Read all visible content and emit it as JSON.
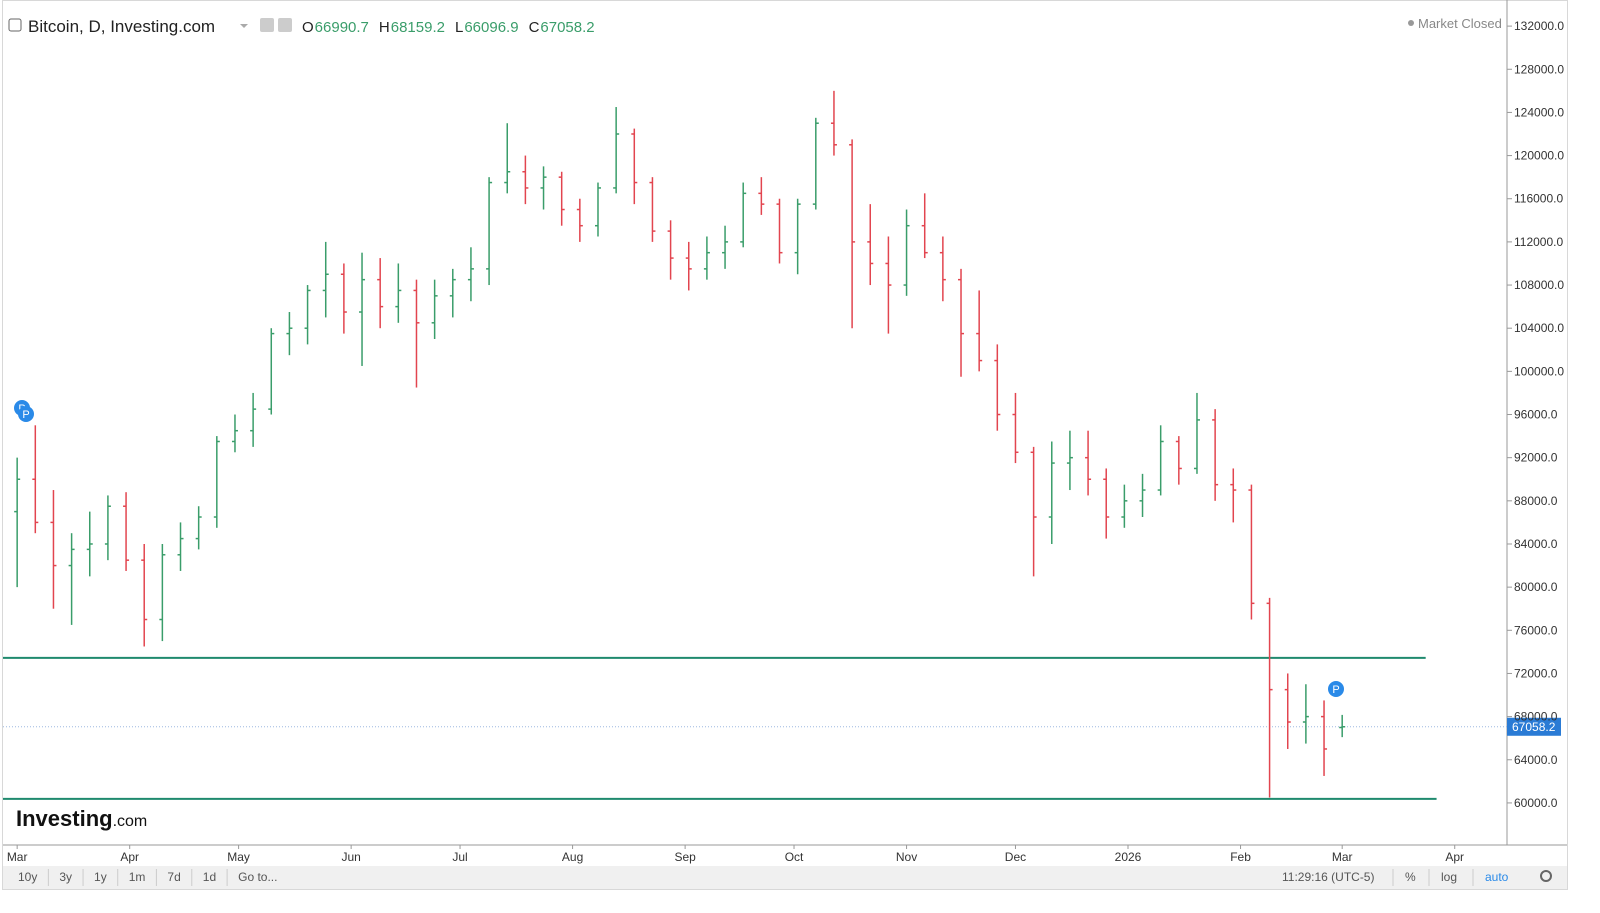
{
  "header": {
    "title": "Bitcoin, D, Investing.com",
    "ohlc_labels": [
      "O",
      "H",
      "L",
      "C"
    ],
    "status": "Market Closed"
  },
  "logo": {
    "brand": "Investing",
    "suffix": ".com"
  },
  "markers": [
    "P",
    "P",
    "P"
  ],
  "chart_data": {
    "type": "ohlc",
    "x": [
      0,
      5,
      10,
      15,
      20,
      25,
      30,
      35,
      40,
      45,
      50,
      55,
      60,
      65,
      70,
      75,
      80,
      85,
      90,
      95,
      100,
      105,
      110,
      115,
      120,
      125,
      130,
      135,
      140,
      145,
      150,
      155,
      160,
      165,
      170,
      175,
      180,
      185,
      190,
      195,
      200,
      205,
      210,
      215,
      220,
      225,
      230,
      235,
      240,
      245,
      250,
      255,
      260,
      265,
      270,
      275,
      280,
      285,
      290,
      295,
      300,
      305,
      310,
      315,
      320,
      325,
      330,
      335,
      340,
      345,
      350,
      355,
      360,
      365
    ],
    "open": [
      87000,
      90000,
      86000,
      82000,
      83500,
      84000,
      87500,
      82500,
      77000,
      83000,
      84500,
      86500,
      93500,
      94500,
      96500,
      103500,
      104000,
      107500,
      109000,
      105500,
      108500,
      106000,
      107500,
      104500,
      107000,
      108500,
      109500,
      117500,
      118500,
      117000,
      118000,
      115000,
      113500,
      117000,
      122000,
      117500,
      113000,
      110500,
      109500,
      111000,
      112000,
      116500,
      115500,
      111000,
      115500,
      123000,
      121000,
      112000,
      110000,
      108000,
      113500,
      111000,
      108500,
      103500,
      101000,
      96000,
      92500,
      86500,
      91500,
      92000,
      90000,
      86500,
      88000,
      89000,
      93500,
      91000,
      95500,
      89500,
      89000,
      78500,
      70500,
      67500,
      68000,
      66990.7
    ],
    "high": [
      92000,
      95000,
      89000,
      85000,
      87000,
      88500,
      88800,
      84000,
      84000,
      86000,
      87500,
      94000,
      96000,
      98000,
      104000,
      105500,
      108000,
      112000,
      110000,
      111000,
      110500,
      110000,
      108500,
      108500,
      109500,
      111500,
      118000,
      123000,
      120000,
      119000,
      118500,
      116000,
      117500,
      124500,
      122500,
      118000,
      114000,
      112000,
      112500,
      113500,
      117500,
      118000,
      116000,
      116000,
      123500,
      126000,
      121500,
      115500,
      112500,
      115000,
      116500,
      112500,
      109500,
      107500,
      102500,
      98000,
      93000,
      93500,
      94500,
      94500,
      91000,
      89500,
      90500,
      95000,
      94000,
      98000,
      96500,
      91000,
      89500,
      79000,
      72000,
      71000,
      69500,
      68159.2
    ],
    "low": [
      80000,
      85000,
      78000,
      76500,
      81000,
      82500,
      81500,
      74500,
      75000,
      81500,
      83500,
      85500,
      92500,
      93000,
      96000,
      101500,
      102500,
      105000,
      103500,
      100500,
      104000,
      104500,
      98500,
      103000,
      105000,
      106500,
      108000,
      116500,
      115500,
      115000,
      113500,
      112000,
      112500,
      116500,
      115500,
      112000,
      108500,
      107500,
      108500,
      109500,
      111500,
      114500,
      110000,
      109000,
      115000,
      120000,
      104000,
      108000,
      103500,
      107000,
      110500,
      106500,
      99500,
      100000,
      94500,
      91500,
      81000,
      84000,
      89000,
      88500,
      84500,
      85500,
      86500,
      88500,
      89500,
      90500,
      88000,
      86000,
      77000,
      60500,
      65000,
      65500,
      62500,
      66096.9
    ],
    "close": [
      90000,
      86000,
      82000,
      83500,
      84000,
      87500,
      82500,
      77000,
      83000,
      84500,
      86500,
      93500,
      94500,
      96500,
      103500,
      104000,
      107500,
      109000,
      105500,
      108500,
      106000,
      107500,
      104500,
      107000,
      108500,
      109500,
      117500,
      118500,
      117000,
      118000,
      115000,
      113500,
      117000,
      122000,
      117500,
      113000,
      110500,
      109500,
      111000,
      112000,
      116500,
      115500,
      111000,
      115500,
      123000,
      121000,
      112000,
      110000,
      108000,
      113500,
      111000,
      108500,
      103500,
      101000,
      96000,
      92500,
      86500,
      91500,
      92000,
      90000,
      86500,
      88000,
      89000,
      93500,
      91000,
      95500,
      89500,
      89000,
      78500,
      70500,
      67500,
      68000,
      65000,
      67058.2
    ],
    "up_color": "#3a9d6a",
    "down_color": "#e2454f",
    "xlim": [
      -3.9,
      410.4
    ],
    "xticks": [
      {
        "value": 0,
        "label": "Mar"
      },
      {
        "value": 31,
        "label": "Apr"
      },
      {
        "value": 61,
        "label": "May"
      },
      {
        "value": 92,
        "label": "Jun"
      },
      {
        "value": 122,
        "label": "Jul"
      },
      {
        "value": 153,
        "label": "Aug"
      },
      {
        "value": 184,
        "label": "Sep"
      },
      {
        "value": 214,
        "label": "Oct"
      },
      {
        "value": 245,
        "label": "Nov"
      },
      {
        "value": 275,
        "label": "Dec"
      },
      {
        "value": 306,
        "label": "2026"
      },
      {
        "value": 337,
        "label": "Feb"
      },
      {
        "value": 365,
        "label": "Mar"
      },
      {
        "value": 396,
        "label": "Apr"
      }
    ],
    "ylim": [
      56100,
      134420
    ],
    "yticks": [
      {
        "value": 60000,
        "label": "60000.0"
      },
      {
        "value": 64000,
        "label": "64000.0"
      },
      {
        "value": 68000,
        "label": "68000.0"
      },
      {
        "value": 72000,
        "label": "72000.0"
      },
      {
        "value": 76000,
        "label": "76000.0"
      },
      {
        "value": 80000,
        "label": "80000.0"
      },
      {
        "value": 84000,
        "label": "84000.0"
      },
      {
        "value": 88000,
        "label": "88000.0"
      },
      {
        "value": 92000,
        "label": "92000.0"
      },
      {
        "value": 96000,
        "label": "96000.0"
      },
      {
        "value": 100000,
        "label": "100000.0"
      },
      {
        "value": 104000,
        "label": "104000.0"
      },
      {
        "value": 108000,
        "label": "108000.0"
      },
      {
        "value": 112000,
        "label": "112000.0"
      },
      {
        "value": 116000,
        "label": "116000.0"
      },
      {
        "value": 120000,
        "label": "120000.0"
      },
      {
        "value": 124000,
        "label": "124000.0"
      },
      {
        "value": 128000,
        "label": "128000.0"
      },
      {
        "value": 132000,
        "label": "132000.0"
      }
    ],
    "hlines": [
      {
        "value": 73440,
        "x": [
          -3.9,
          388
        ]
      },
      {
        "value": 60370,
        "x": [
          -3.9,
          391
        ]
      }
    ],
    "hline_color": "#1f8a6e"
  },
  "toolbar": {
    "ranges": [
      "10y",
      "3y",
      "1y",
      "1m",
      "7d",
      "1d"
    ],
    "goto": "Go to...",
    "time": "11:29:16 (UTC-5)",
    "options": [
      "%",
      "log",
      "auto"
    ]
  }
}
